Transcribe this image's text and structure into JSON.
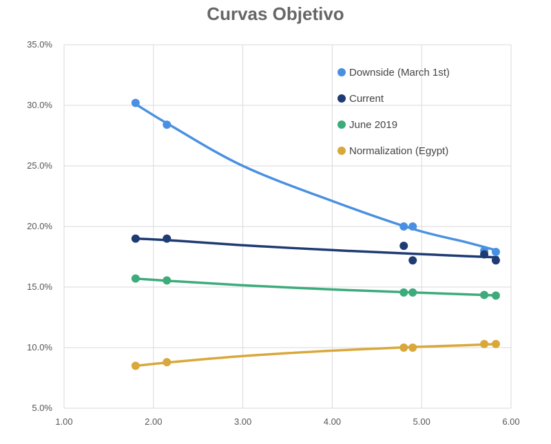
{
  "chart_data": {
    "type": "scatter",
    "title": "Curvas Objetivo",
    "xlabel": "",
    "ylabel": "",
    "xlim": [
      1.0,
      6.0
    ],
    "ylim": [
      5.0,
      35.0
    ],
    "x_ticks": [
      1.0,
      2.0,
      3.0,
      4.0,
      5.0,
      6.0
    ],
    "x_tick_labels": [
      "1.00",
      "2.00",
      "3.00",
      "4.00",
      "5.00",
      "6.00"
    ],
    "y_ticks": [
      5,
      10,
      15,
      20,
      25,
      30,
      35
    ],
    "y_tick_labels": [
      "5.0%",
      "10.0%",
      "15.0%",
      "20.0%",
      "25.0%",
      "30.0%",
      "35.0%"
    ],
    "grid": true,
    "legend_position": "top-right",
    "trendline": "power",
    "series": [
      {
        "name": "Downside (March 1st)",
        "color": "#4a90e2",
        "points": [
          [
            1.8,
            30.2
          ],
          [
            2.15,
            28.4
          ],
          [
            4.8,
            20.0
          ],
          [
            4.9,
            20.0
          ],
          [
            5.7,
            18.0
          ],
          [
            5.83,
            17.9
          ]
        ],
        "trend": [
          [
            1.8,
            30.1
          ],
          [
            2.2,
            28.3
          ],
          [
            3.0,
            25.0
          ],
          [
            4.0,
            22.1
          ],
          [
            4.9,
            19.8
          ],
          [
            5.5,
            18.7
          ],
          [
            5.85,
            18.0
          ]
        ]
      },
      {
        "name": "Current",
        "color": "#1f3b73",
        "points": [
          [
            1.8,
            19.0
          ],
          [
            2.15,
            19.0
          ],
          [
            4.8,
            18.4
          ],
          [
            4.9,
            17.2
          ],
          [
            5.7,
            17.7
          ],
          [
            5.83,
            17.2
          ]
        ],
        "trend": [
          [
            1.8,
            19.0
          ],
          [
            2.2,
            18.85
          ],
          [
            3.0,
            18.45
          ],
          [
            4.0,
            18.05
          ],
          [
            4.9,
            17.75
          ],
          [
            5.5,
            17.55
          ],
          [
            5.85,
            17.45
          ]
        ]
      },
      {
        "name": "June 2019",
        "color": "#3dab7b",
        "points": [
          [
            1.8,
            15.7
          ],
          [
            2.15,
            15.55
          ],
          [
            4.8,
            14.55
          ],
          [
            4.9,
            14.55
          ],
          [
            5.7,
            14.35
          ],
          [
            5.83,
            14.3
          ]
        ],
        "trend": [
          [
            1.8,
            15.7
          ],
          [
            2.2,
            15.5
          ],
          [
            3.0,
            15.15
          ],
          [
            4.0,
            14.8
          ],
          [
            4.9,
            14.55
          ],
          [
            5.5,
            14.4
          ],
          [
            5.85,
            14.3
          ]
        ]
      },
      {
        "name": "Normalization (Egypt)",
        "color": "#d9a83a",
        "points": [
          [
            1.8,
            8.5
          ],
          [
            2.15,
            8.8
          ],
          [
            4.8,
            10.0
          ],
          [
            4.9,
            10.0
          ],
          [
            5.7,
            10.3
          ],
          [
            5.83,
            10.3
          ]
        ],
        "trend": [
          [
            1.8,
            8.5
          ],
          [
            2.2,
            8.8
          ],
          [
            3.0,
            9.3
          ],
          [
            4.0,
            9.75
          ],
          [
            4.9,
            10.05
          ],
          [
            5.5,
            10.2
          ],
          [
            5.85,
            10.3
          ]
        ]
      }
    ]
  }
}
